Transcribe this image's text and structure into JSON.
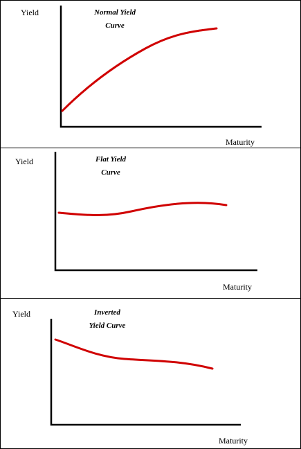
{
  "panels": [
    {
      "y_label": "Yield",
      "title_lines": [
        "Normal Yield",
        "Curve"
      ],
      "x_label": "Maturity"
    },
    {
      "y_label": "Yield",
      "title_lines": [
        "Flat Yield",
        "Curve"
      ],
      "x_label": "Maturity"
    },
    {
      "y_label": "Yield",
      "title_lines": [
        "Inverted",
        "Yield Curve"
      ],
      "x_label": "Maturity"
    }
  ]
}
